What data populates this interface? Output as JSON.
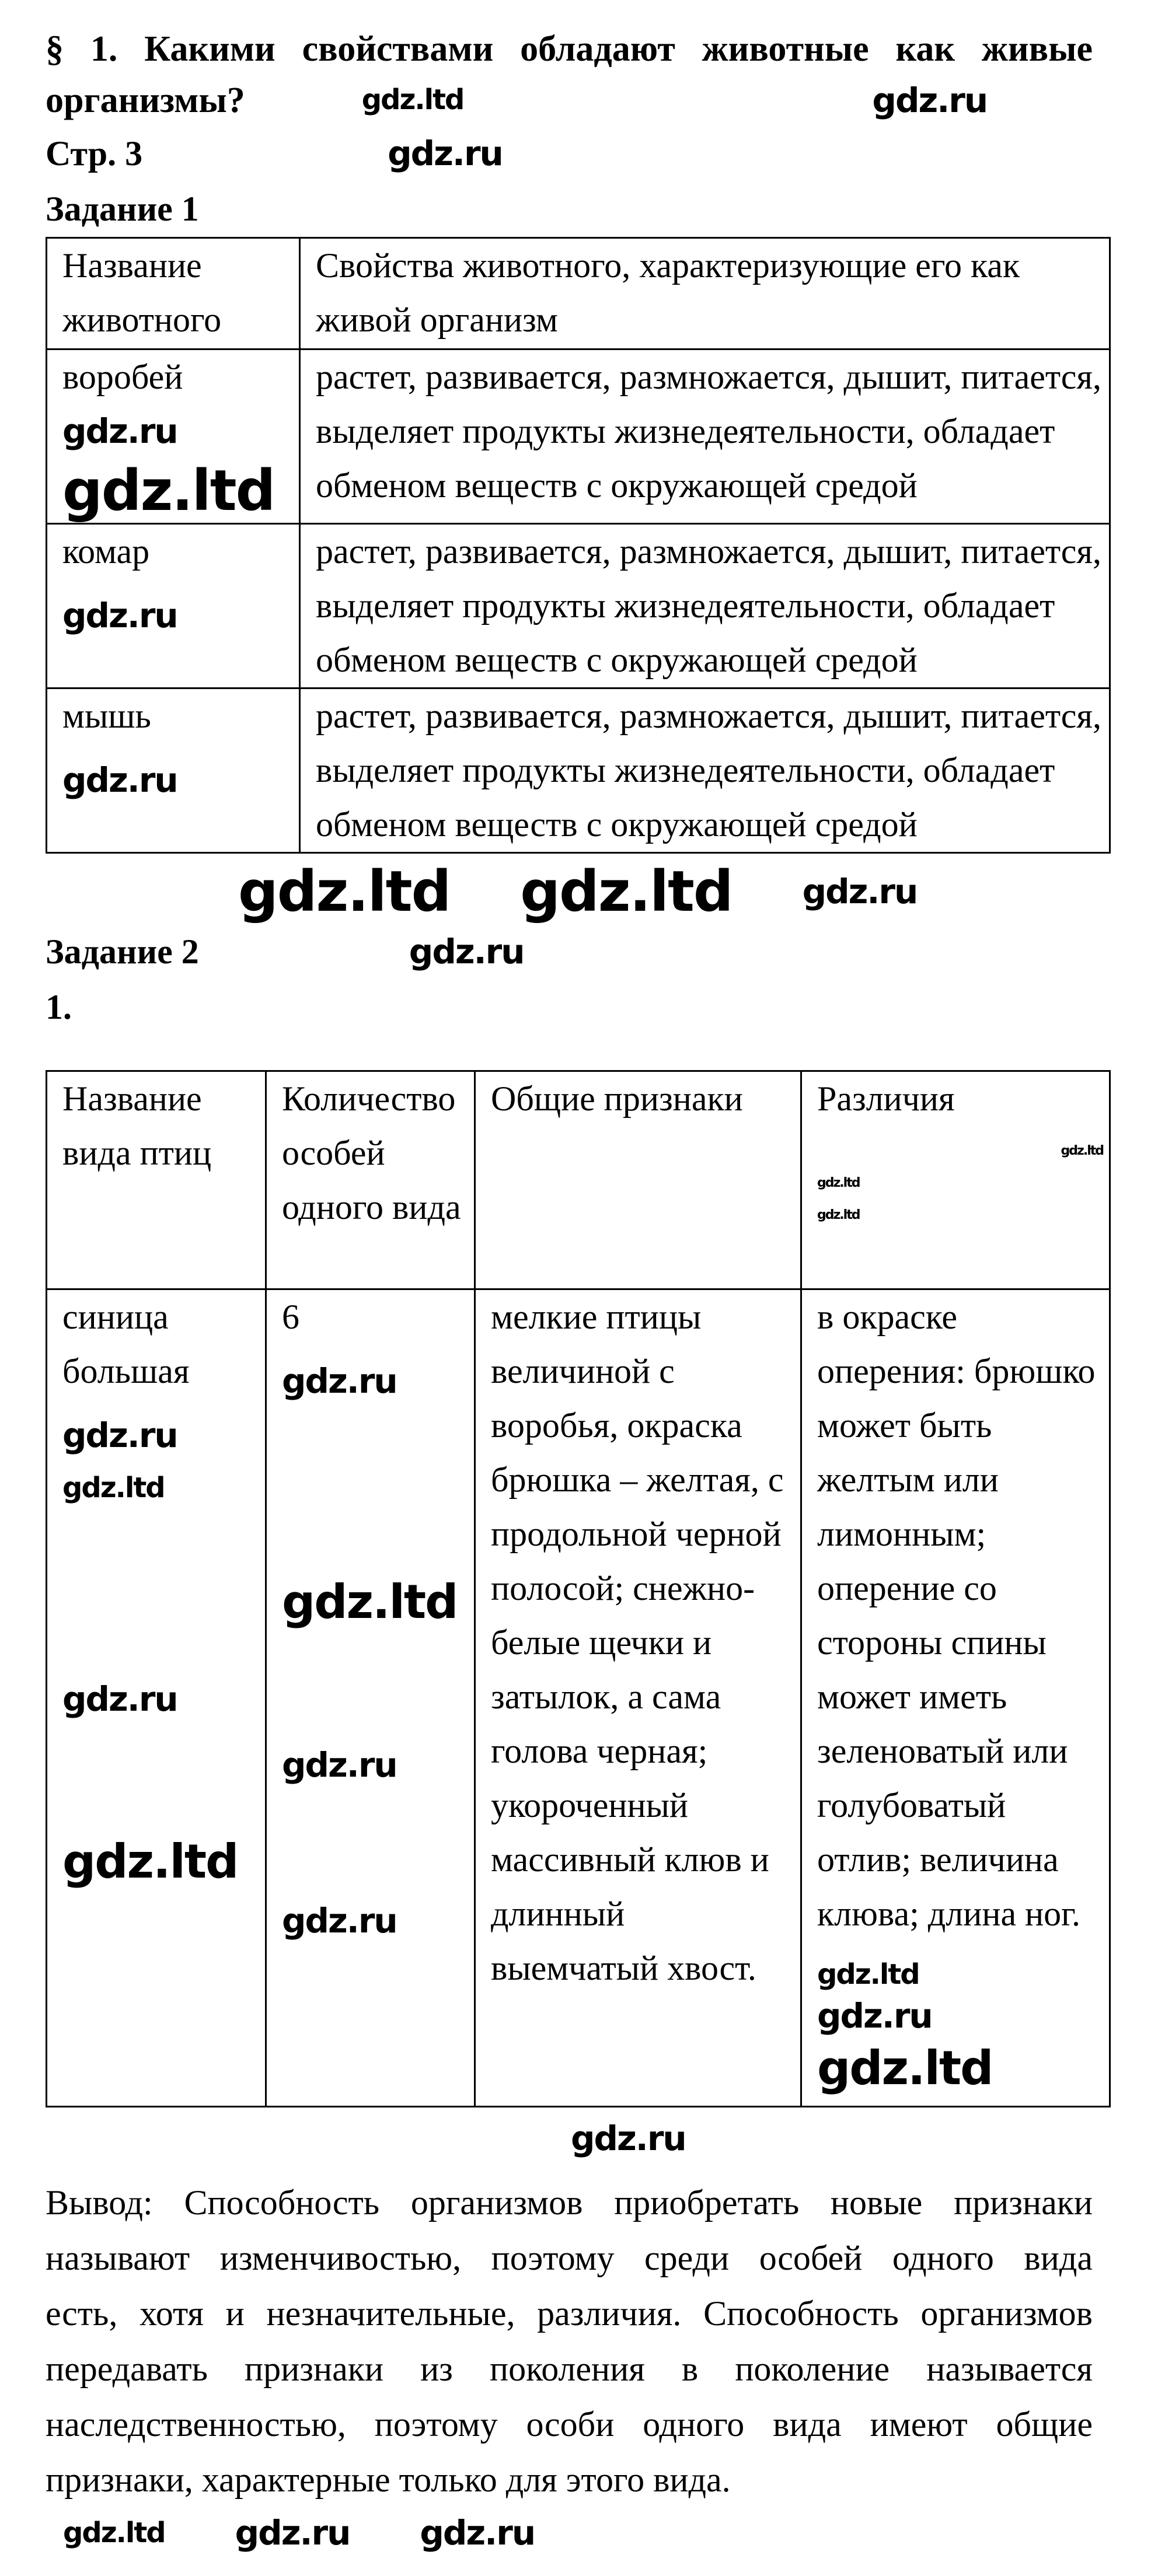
{
  "title": {
    "line1": "§ 1. Какими свойствами обладают животные как живые",
    "line2": "организмы?"
  },
  "page_ref": "Стр. 3",
  "task1": {
    "heading": "Задание 1",
    "headers": [
      "Название животного",
      "Свойства животного, характеризующие его как живой организм"
    ],
    "rows": [
      {
        "animal": "воробей",
        "properties": "растет, развивается, размножается, дышит, питается, выделяет продукты жизнедеятельности, обладает обменом веществ с окружающей средой"
      },
      {
        "animal": "комар",
        "properties": "растет, развивается, размножается, дышит, питается, выделяет продукты жизнедеятельности, обладает обменом веществ с окружающей средой"
      },
      {
        "animal": "мышь",
        "properties": "растет, развивается, размножается, дышит, питается, выделяет продукты жизнедеятельности, обладает обменом веществ с окружающей средой"
      }
    ]
  },
  "task2": {
    "heading": "Задание 2",
    "item": "1.",
    "headers": [
      "Название вида птиц",
      "Количество особей одного вида",
      "Общие признаки",
      "Различия"
    ],
    "rows": [
      {
        "species": "синица большая",
        "count": "6",
        "common": "мелкие птицы величиной с воробья, окраска брюшка – желтая, с продольной черной полосой; снежно-белые щечки и затылок, а сама голова черная; укороченный массивный клюв и длинный выемчатый хвост.",
        "differences": "в окраске оперения: брюшко может быть желтым или лимонным; оперение со стороны спины может иметь зеленоватый или голубоватый отлив; величина клюва; длина ног."
      }
    ]
  },
  "conclusion": {
    "lines": [
      "Вывод: Способность организмов приобретать новые признаки",
      "называют изменчивостью, поэтому среди особей одного вида",
      "есть, хотя и незначительные, различия. Способность организмов",
      "передавать признаки из поколения в поколение называется",
      "наследственностью, поэтому особи одного вида имеют общие",
      "признаки, характерные только для этого вида."
    ]
  },
  "watermarks": {
    "ltd": "gdz.ltd",
    "ru": "gdz.ru"
  }
}
